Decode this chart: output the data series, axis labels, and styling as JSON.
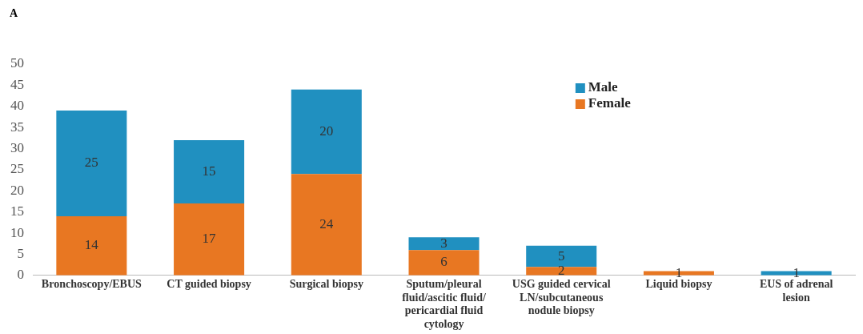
{
  "chart_data": {
    "type": "bar",
    "title": "A",
    "categories": [
      "Bronchoscopy/EBUS",
      "CT guided biopsy",
      "Surgical biopsy",
      "Sputum/pleural fluid/ascitic fluid/pericardial fluid cytology",
      "USG guided cervical LN/subcutaneous nodule biopsy",
      "Liquid biopsy",
      "EUS of adrenal lesion"
    ],
    "series": [
      {
        "name": "Female",
        "color": "#e87722",
        "values": [
          14,
          17,
          24,
          6,
          2,
          1,
          null
        ]
      },
      {
        "name": "Male",
        "color": "#2090c0",
        "values": [
          25,
          15,
          20,
          3,
          5,
          null,
          1
        ]
      }
    ],
    "stacked": true,
    "ylim": [
      0,
      50
    ],
    "yticks": [
      0,
      5,
      10,
      15,
      20,
      25,
      30,
      35,
      40,
      45,
      50
    ],
    "grid": false,
    "legend": "top right",
    "data_labels": true
  }
}
